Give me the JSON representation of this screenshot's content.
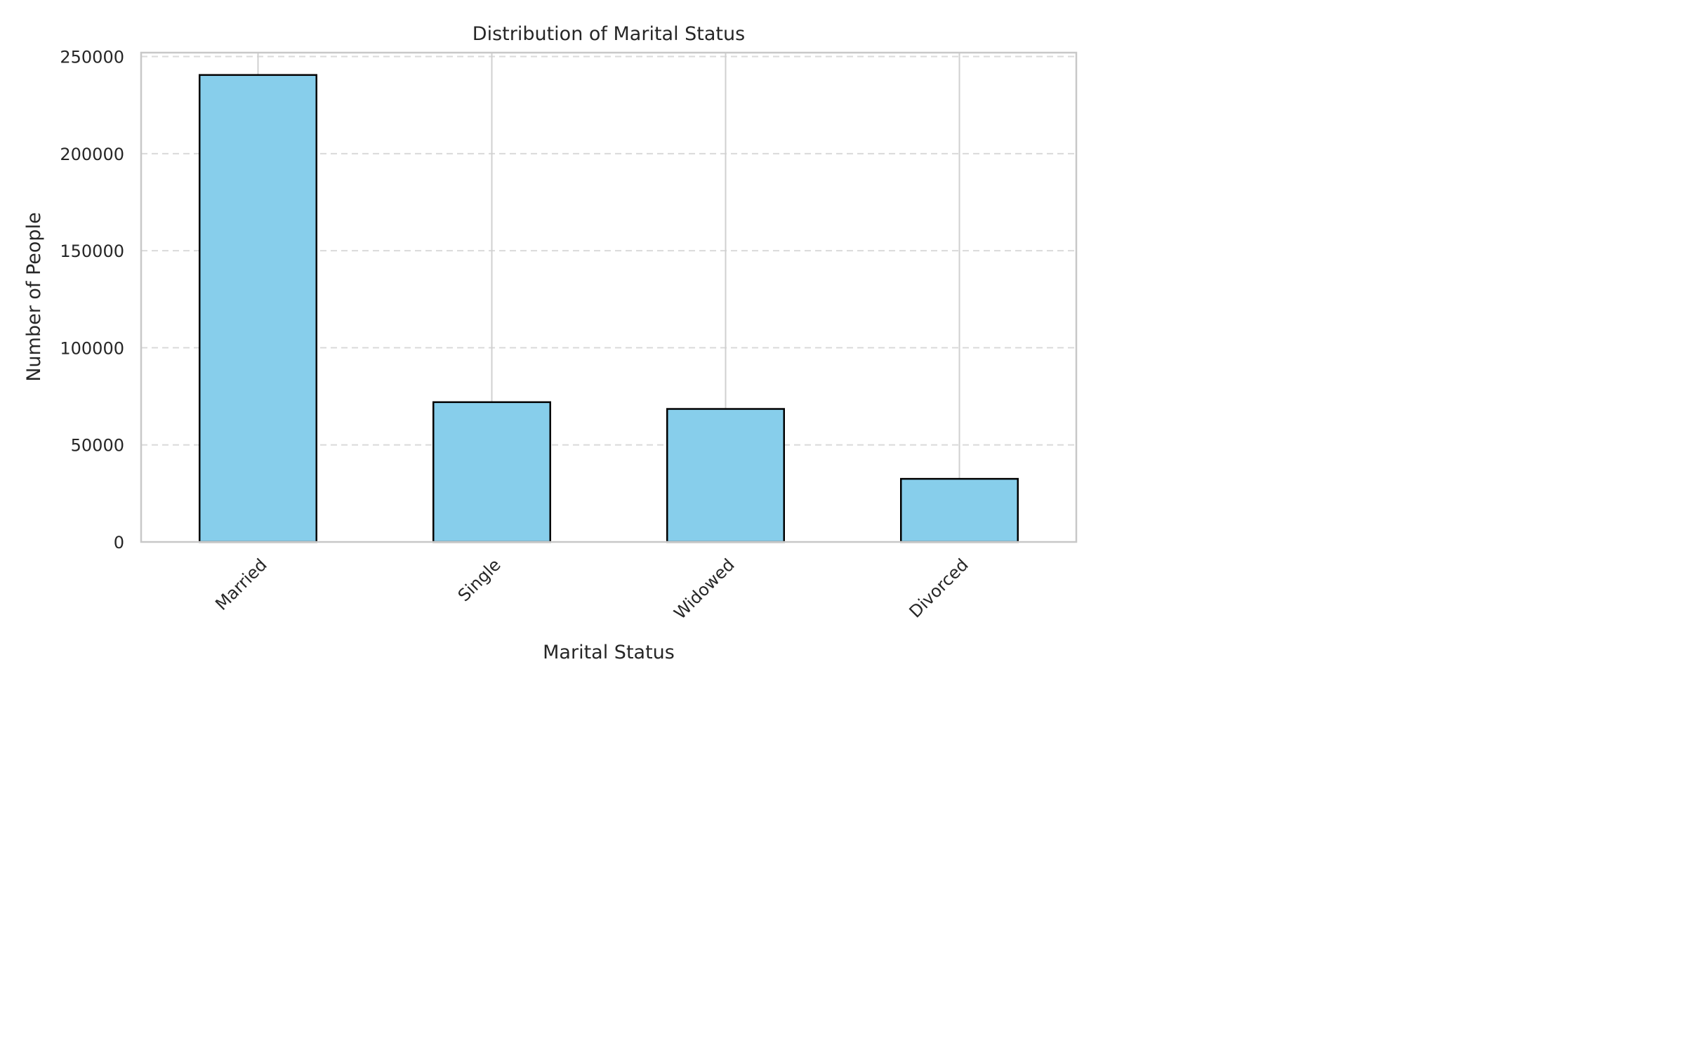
{
  "chart_data": {
    "type": "bar",
    "title": "Distribution of Marital Status",
    "xlabel": "Marital Status",
    "ylabel": "Number of People",
    "categories": [
      "Married",
      "Single",
      "Widowed",
      "Divorced"
    ],
    "values": [
      240500,
      72000,
      68500,
      32500
    ],
    "ylim": [
      0,
      252000
    ],
    "yticks": [
      0,
      50000,
      100000,
      150000,
      200000,
      250000
    ],
    "grid": true,
    "bar_color": "#87CEEB",
    "bar_edge_color": "#000000"
  }
}
